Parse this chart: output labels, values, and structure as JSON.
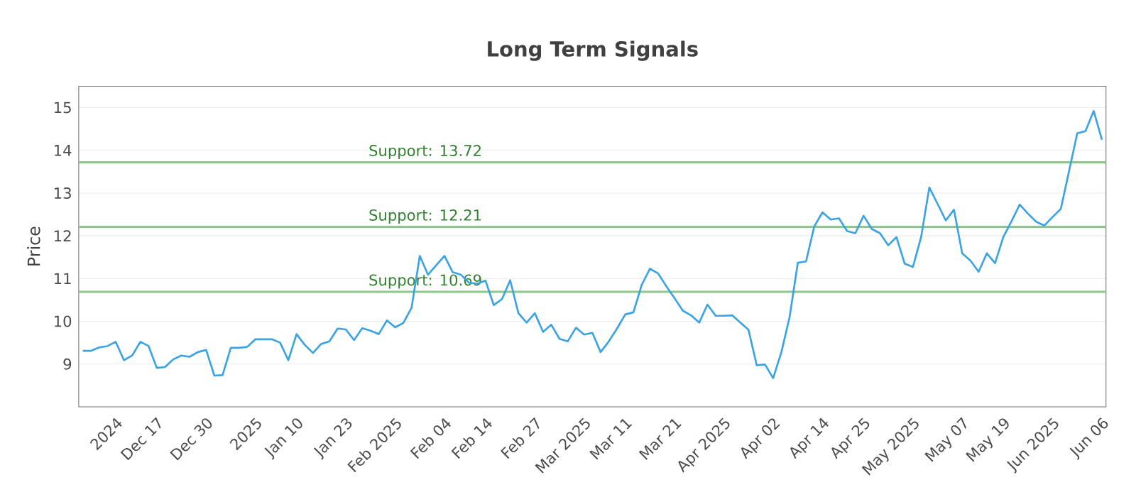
{
  "chart_data": {
    "type": "line",
    "title": "Long Term Signals",
    "ylabel": "Price",
    "categories": [
      null,
      null,
      null,
      null,
      "2024",
      null,
      null,
      null,
      null,
      "Dec 17",
      null,
      null,
      null,
      null,
      null,
      "Dec 30",
      null,
      null,
      null,
      null,
      null,
      "2025",
      null,
      null,
      null,
      null,
      "Jan 10",
      null,
      null,
      null,
      null,
      null,
      "Jan 23",
      null,
      null,
      null,
      null,
      null,
      "Feb 2025",
      null,
      null,
      null,
      null,
      null,
      "Feb 04",
      null,
      null,
      null,
      null,
      "Feb 14",
      null,
      null,
      null,
      null,
      null,
      "Feb 27",
      null,
      null,
      null,
      null,
      null,
      "Mar 2025",
      null,
      null,
      null,
      null,
      "Mar 11",
      null,
      null,
      null,
      null,
      null,
      "Mar 21",
      null,
      null,
      null,
      null,
      null,
      "Apr 2025",
      null,
      null,
      null,
      null,
      null,
      "Apr 02",
      null,
      null,
      null,
      null,
      null,
      "Apr 14",
      null,
      null,
      null,
      null,
      "Apr 25",
      null,
      null,
      null,
      null,
      null,
      "May 2025",
      null,
      null,
      null,
      null,
      null,
      "May 07",
      null,
      null,
      null,
      null,
      "May 19",
      null,
      null,
      null,
      null,
      null,
      "Jun 2025",
      null,
      null,
      null,
      null,
      null,
      "Jun 06"
    ],
    "series": [
      {
        "color": "#3aa3e3",
        "values": [
          9.31,
          9.31,
          9.39,
          9.42,
          9.52,
          9.09,
          9.2,
          9.52,
          9.42,
          8.91,
          8.93,
          9.11,
          9.2,
          9.17,
          9.28,
          9.33,
          8.73,
          8.74,
          9.38,
          9.38,
          9.4,
          9.58,
          9.58,
          9.58,
          9.5,
          9.09,
          9.7,
          9.45,
          9.26,
          9.47,
          9.53,
          9.83,
          9.81,
          9.56,
          9.84,
          9.78,
          9.7,
          10.02,
          9.86,
          9.96,
          10.32,
          11.53,
          11.09,
          11.31,
          11.53,
          11.15,
          11.09,
          10.9,
          10.88,
          10.95,
          10.38,
          10.52,
          10.96,
          10.19,
          9.97,
          10.19,
          9.75,
          9.92,
          9.59,
          9.53,
          9.85,
          9.69,
          9.73,
          9.28,
          9.53,
          9.83,
          10.16,
          10.21,
          10.85,
          11.23,
          11.12,
          10.82,
          10.54,
          10.25,
          10.14,
          9.97,
          10.39,
          10.13,
          10.13,
          10.14,
          9.97,
          9.8,
          8.97,
          8.99,
          8.67,
          9.28,
          10.1,
          11.37,
          11.4,
          12.22,
          12.55,
          12.38,
          12.41,
          12.11,
          12.06,
          12.47,
          12.16,
          12.06,
          11.78,
          11.97,
          11.35,
          11.27,
          11.97,
          13.13,
          12.75,
          12.36,
          12.61,
          11.59,
          11.42,
          11.16,
          11.59,
          11.36,
          11.97,
          12.34,
          12.73,
          12.52,
          12.33,
          12.24,
          12.44,
          12.63,
          13.51,
          14.4,
          14.45,
          14.92,
          14.25
        ]
      }
    ],
    "ylim": [
      8,
      15.5
    ],
    "yticks": [
      9,
      10,
      11,
      12,
      13,
      14,
      15
    ],
    "grid": "y",
    "line_style": "solid",
    "marker": "none",
    "ref_lines": [
      {
        "axis": "y",
        "value": 10.69,
        "label": "Support: 10.69",
        "color": "#8cc88c"
      },
      {
        "axis": "y",
        "value": 12.21,
        "label": "Support: 12.21",
        "color": "#8cc88c"
      },
      {
        "axis": "y",
        "value": 13.72,
        "label": "Support: 13.72",
        "color": "#8cc88c"
      }
    ]
  }
}
